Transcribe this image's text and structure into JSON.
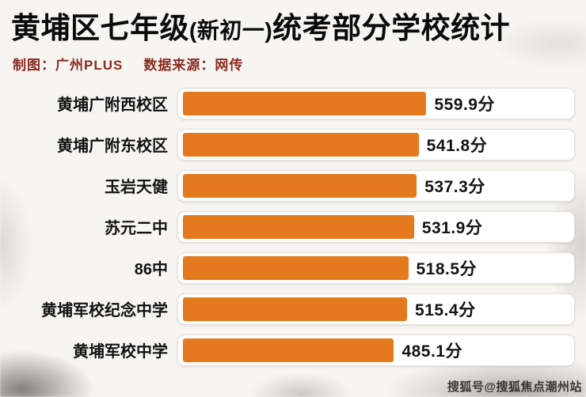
{
  "header": {
    "title_prefix": "黄埔区七年级",
    "title_paren": "(新初一)",
    "title_suffix": "统考部分学校统计",
    "credit": "制图：广州PLUS",
    "source": "数据来源：网传"
  },
  "chart_data": {
    "type": "bar",
    "orientation": "horizontal",
    "title": "黄埔区七年级(新初一)统考部分学校统计",
    "categories": [
      "黄埔广附西校区",
      "黄埔广附东校区",
      "玉岩天健",
      "苏元二中",
      "86中",
      "黄埔军校纪念中学",
      "黄埔军校中学"
    ],
    "values": [
      559.9,
      541.8,
      537.3,
      531.9,
      518.5,
      515.4,
      485.1
    ],
    "value_labels": [
      "559.9分",
      "541.8分",
      "537.3分",
      "531.9分",
      "518.5分",
      "515.4分",
      "485.1分"
    ],
    "unit": "分",
    "bar_color": "#e5791e",
    "xlim": [
      0,
      600
    ],
    "grid": false,
    "legend": false
  },
  "watermark": "搜狐号@搜狐焦点潮州站"
}
